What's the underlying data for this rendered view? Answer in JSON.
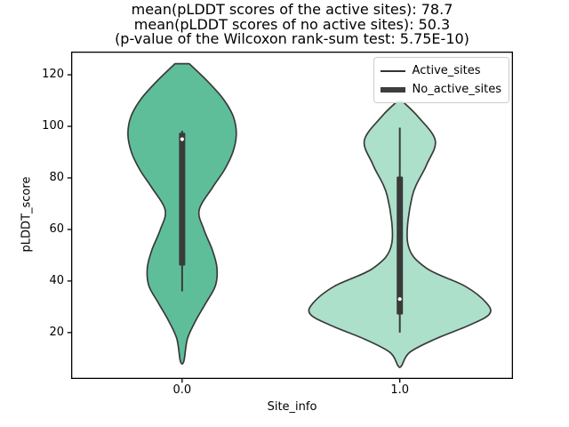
{
  "chart_data": {
    "type": "violin",
    "title_lines": [
      "mean(pLDDT scores of the active sites): 78.7",
      "mean(pLDDT scores of no active sites): 50.3",
      "(p-value of the Wilcoxon rank-sum test: 5.75E-10)"
    ],
    "xlabel": "Site_info",
    "ylabel": "pLDDT_score",
    "xlim": [
      -0.51,
      1.52
    ],
    "ylim": [
      2,
      129
    ],
    "yticks": [
      20,
      40,
      60,
      80,
      100,
      120
    ],
    "xticks": [
      {
        "x": 0,
        "label": "0.0"
      },
      {
        "x": 1,
        "label": "1.0"
      }
    ],
    "grid": false,
    "edge_color": "#3a3a3a",
    "legend": {
      "position": "upper right",
      "entries": [
        {
          "label": "Active_sites",
          "line": "thin"
        },
        {
          "label": "No_active_sites",
          "line": "thick"
        }
      ]
    },
    "stats_text": {
      "mean_active_sites": 78.7,
      "mean_no_active_sites": 50.3,
      "wilcoxon_p_value": "5.75E-10"
    },
    "groups": [
      {
        "label": "0.0",
        "x": 0,
        "fill": "#5fbe9a",
        "box_stats": {
          "whisker_low": 36,
          "q1": 46,
          "median": 95,
          "q3": 97.5,
          "whisker_high": 98.3
        },
        "kde_profile": [
          [
            124.3,
            0.033
          ],
          [
            117.7,
            0.114
          ],
          [
            110.7,
            0.188
          ],
          [
            103.8,
            0.235
          ],
          [
            96.9,
            0.249
          ],
          [
            90.0,
            0.233
          ],
          [
            83.1,
            0.194
          ],
          [
            76.2,
            0.139
          ],
          [
            67.5,
            0.078
          ],
          [
            60.0,
            0.1
          ],
          [
            52.0,
            0.139
          ],
          [
            45.1,
            0.16
          ],
          [
            38.2,
            0.153
          ],
          [
            31.3,
            0.108
          ],
          [
            24.4,
            0.061
          ],
          [
            17.5,
            0.024
          ],
          [
            8.9,
            0.008
          ]
        ]
      },
      {
        "label": "1.0",
        "x": 1,
        "fill": "#ace0cb",
        "box_stats": {
          "whisker_low": 20,
          "q1": 27,
          "median": 33,
          "q3": 80.5,
          "whisker_high": 99.5
        },
        "kde_profile": [
          [
            109.7,
            0.012
          ],
          [
            103.9,
            0.082
          ],
          [
            94.5,
            0.163
          ],
          [
            84.9,
            0.122
          ],
          [
            72.8,
            0.057
          ],
          [
            54.5,
            0.037
          ],
          [
            45.1,
            0.12
          ],
          [
            38.0,
            0.3
          ],
          [
            31.3,
            0.4
          ],
          [
            27.0,
            0.41
          ],
          [
            22.7,
            0.315
          ],
          [
            17.5,
            0.163
          ],
          [
            12.3,
            0.045
          ],
          [
            7.1,
            0.008
          ]
        ]
      }
    ]
  }
}
